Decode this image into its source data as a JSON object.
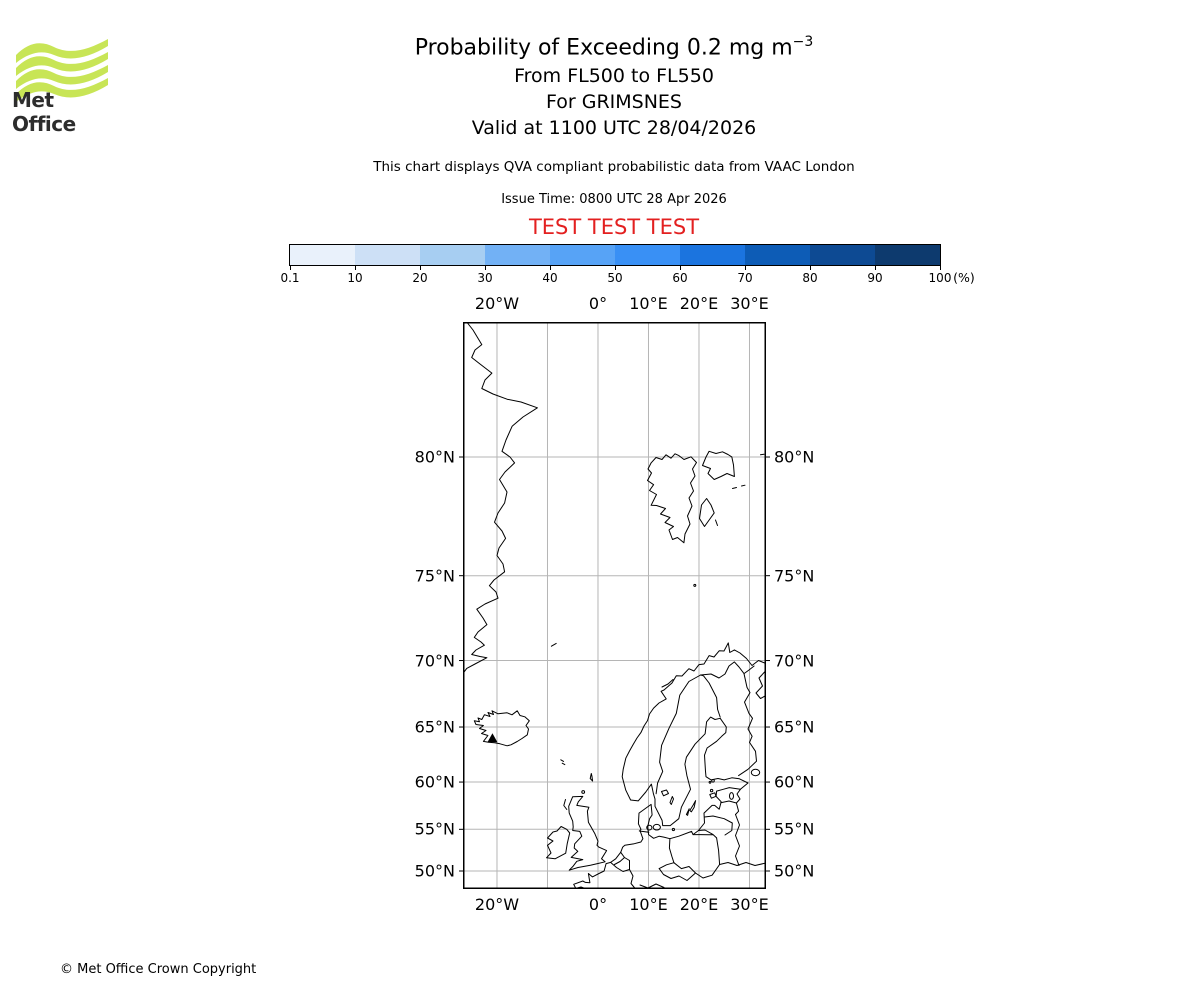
{
  "header": {
    "logo_text": "Met Office",
    "title_main": "Probability of Exceeding 0.2 mg m",
    "title_sup": "−3",
    "subtitle1": "From FL500 to FL550",
    "subtitle2": "For GRIMSNES",
    "subtitle3": "Valid at 1100 UTC 28/04/2026",
    "disclaimer": "This chart displays QVA compliant probabilistic data from VAAC London",
    "issue_time": "Issue Time: 0800 UTC 28 Apr 2026",
    "test_banner": "TEST TEST TEST"
  },
  "colorbar": {
    "tick_labels": [
      "0.1",
      "10",
      "20",
      "30",
      "40",
      "50",
      "60",
      "70",
      "80",
      "90",
      "100"
    ],
    "unit_label": "(%)",
    "segment_colors": [
      "#e9f1fb",
      "#cde0f6",
      "#a7cef2",
      "#72b1f5",
      "#57a3f6",
      "#3990f5",
      "#1b74df",
      "#0d5cb6",
      "#0d4a93",
      "#0d3a6e"
    ]
  },
  "map": {
    "lon_labels": [
      {
        "lon": -20,
        "text": "20°W"
      },
      {
        "lon": 0,
        "text": "0°"
      },
      {
        "lon": 10,
        "text": "10°E"
      },
      {
        "lon": 20,
        "text": "20°E"
      },
      {
        "lon": 30,
        "text": "30°E"
      }
    ],
    "lat_labels": [
      {
        "lat": 80,
        "text": "80°N"
      },
      {
        "lat": 75,
        "text": "75°N"
      },
      {
        "lat": 70,
        "text": "70°N"
      },
      {
        "lat": 65,
        "text": "65°N"
      },
      {
        "lat": 60,
        "text": "60°N"
      },
      {
        "lat": 55,
        "text": "55°N"
      },
      {
        "lat": 50,
        "text": "50°N"
      }
    ]
  },
  "footer": {
    "copyright": "© Met Office Crown Copyright"
  },
  "colors": {
    "logo_green": "#c8e556",
    "test_red": "#e32020",
    "gridline_gray": "#b5b5b5"
  },
  "chart_data": {
    "type": "map",
    "projection": "mercator",
    "extent": {
      "lon_min": -26.7,
      "lon_max": 33.3,
      "lat_min": 47.5,
      "lat_max": 83.7
    },
    "grid_lons_deg_e": [
      -20,
      -10,
      0,
      10,
      20,
      30
    ],
    "grid_lats_deg_n": [
      50,
      55,
      60,
      65,
      70,
      75,
      80
    ],
    "colorbar_thresholds_percent": [
      0.1,
      10,
      20,
      30,
      40,
      50,
      60,
      70,
      80,
      90,
      100
    ],
    "colorbar_unit": "%",
    "volcano_marker": {
      "name": "GRIMSNES",
      "lat": 64.0,
      "lon": -20.9
    },
    "probability_shading_visible": false
  }
}
